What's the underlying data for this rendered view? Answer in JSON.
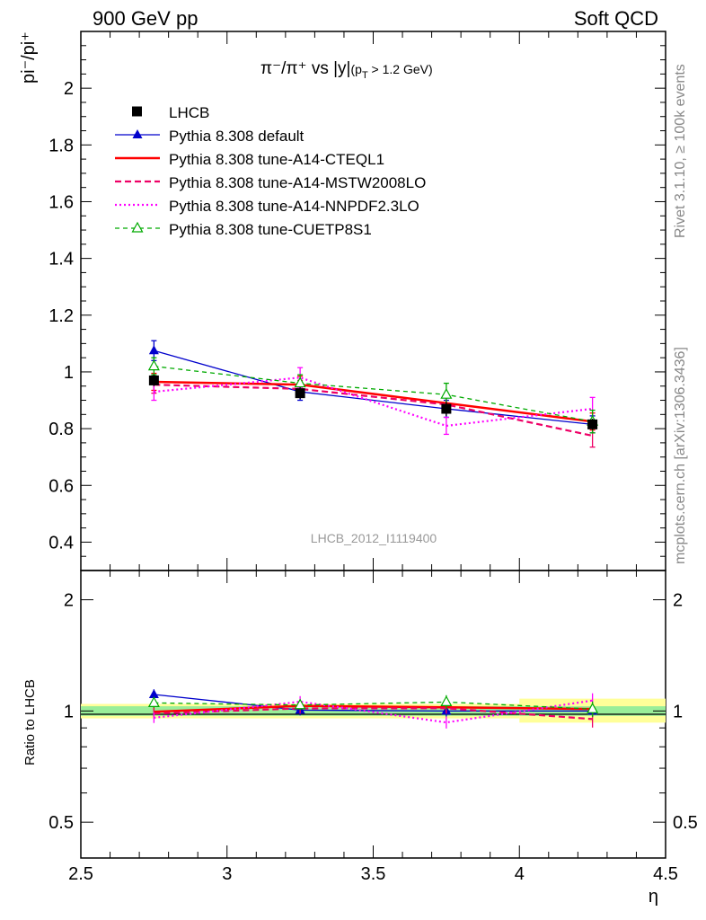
{
  "header": {
    "left": "900 GeV pp",
    "right": "Soft QCD"
  },
  "side_labels": {
    "rivet": "Rivet 3.1.10, ≥ 100k events",
    "mcplots": "mcplots.cern.ch [arXiv:1306.3436]"
  },
  "chart_data": {
    "type": "line",
    "title_main": "π⁻/π⁺ vs |y|",
    "title_sub": "(p",
    "title_sub_T": "T",
    "title_sub_rest": " > 1.2 GeV)",
    "ylabel": "pi⁻/pi⁺",
    "xlabel": "η",
    "watermark": "LHCB_2012_I1119400",
    "xlim": [
      2.5,
      4.5
    ],
    "ylim": [
      0.3,
      2.2
    ],
    "x_ticks": [
      "2.5",
      "3",
      "3.5",
      "4",
      "4.5"
    ],
    "y_ticks": [
      "0.4",
      "0.6",
      "0.8",
      "1",
      "1.2",
      "1.4",
      "1.6",
      "1.8",
      "2"
    ],
    "x": [
      2.75,
      3.25,
      3.75,
      4.25
    ],
    "data": {
      "name": "LHCB",
      "values": [
        0.97,
        0.925,
        0.87,
        0.815
      ],
      "errors": [
        0.02,
        0.02,
        0.025,
        0.02
      ]
    },
    "series": [
      {
        "name": "Pythia 8.308 default",
        "color": "#0000cc",
        "style": "solid",
        "marker": "triangle-filled",
        "values": [
          1.075,
          0.93,
          0.87,
          0.815
        ],
        "errors": [
          0.035,
          0.03,
          0.03,
          0.03
        ]
      },
      {
        "name": "Pythia 8.308 tune-A14-CTEQL1",
        "color": "#ff0000",
        "style": "solid-thick",
        "marker": "none",
        "values": [
          0.965,
          0.955,
          0.89,
          0.825
        ],
        "errors": [
          0.03,
          0.03,
          0.03,
          0.03
        ]
      },
      {
        "name": "Pythia 8.308 tune-A14-MSTW2008LO",
        "color": "#ee0066",
        "style": "dashed",
        "marker": "none",
        "values": [
          0.955,
          0.94,
          0.885,
          0.775
        ],
        "errors": [
          0.03,
          0.03,
          0.03,
          0.04
        ]
      },
      {
        "name": "Pythia 8.308 tune-A14-NNPDF2.3LO",
        "color": "#ff00ff",
        "style": "dotted",
        "marker": "none",
        "values": [
          0.93,
          0.98,
          0.81,
          0.87
        ],
        "errors": [
          0.03,
          0.035,
          0.03,
          0.04
        ]
      },
      {
        "name": "Pythia 8.308 tune-CUETP8S1",
        "color": "#00aa00",
        "style": "dashed-thin",
        "marker": "triangle-open",
        "values": [
          1.02,
          0.96,
          0.92,
          0.825
        ],
        "errors": [
          0.03,
          0.03,
          0.04,
          0.04
        ]
      }
    ],
    "ratio": {
      "ylabel": "Ratio to LHCB",
      "ylim": [
        0.4,
        2.4
      ],
      "log_scale": true,
      "y_ticks_left": [
        "0.5",
        "1",
        "2"
      ],
      "y_ticks_right": [
        "0.5",
        "1",
        "2"
      ],
      "bands": [
        {
          "x": [
            2.5,
            4.0
          ],
          "inner": [
            0.97,
            1.03
          ],
          "outer": [
            0.955,
            1.045
          ]
        },
        {
          "x": [
            4.0,
            4.5
          ],
          "inner": [
            0.97,
            1.03
          ],
          "outer": [
            0.93,
            1.08
          ]
        }
      ]
    }
  }
}
